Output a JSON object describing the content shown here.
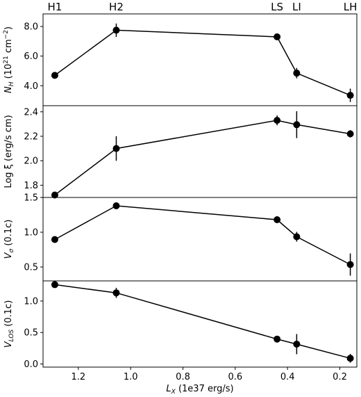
{
  "chart_data": {
    "type": "line",
    "x": [
      1.29,
      1.055,
      0.44,
      0.365,
      0.16
    ],
    "xlim": [
      1.335,
      0.135
    ],
    "xticks": [
      1.2,
      1.0,
      0.8,
      0.6,
      0.4,
      0.2
    ],
    "xtick_labels": [
      "1.2",
      "1.0",
      "0.8",
      "0.6",
      "0.4",
      "0.2"
    ],
    "xlabel_parts": [
      "L",
      "X",
      " (1e37 erg/s)"
    ],
    "top_labels": [
      "H1",
      "H2",
      "LS",
      "LI",
      "LH"
    ],
    "panels": [
      {
        "ylabel_parts": [
          "N",
          "H",
          " (10",
          "21",
          " cm",
          "−2",
          ")"
        ],
        "ylim": [
          2.65,
          8.85
        ],
        "yticks": [
          4.0,
          6.0,
          8.0
        ],
        "ytick_labels": [
          "4.0",
          "6.0",
          "8.0"
        ],
        "values": [
          4.7,
          7.75,
          7.3,
          4.85,
          3.35
        ],
        "errors": [
          0.12,
          0.45,
          0.18,
          0.35,
          0.45
        ]
      },
      {
        "ylabel_parts": [
          "Log ξ (erg/s cm)"
        ],
        "ylim": [
          1.7,
          2.45
        ],
        "yticks": [
          1.8,
          2.0,
          2.2,
          2.4
        ],
        "ytick_labels": [
          "1.8",
          "2.0",
          "2.2",
          "2.4"
        ],
        "values": [
          1.72,
          2.1,
          2.33,
          2.295,
          2.22
        ],
        "errors": [
          0.008,
          0.1,
          0.04,
          0.11,
          0.03
        ]
      },
      {
        "ylabel_parts": [
          "V",
          "σ",
          " (0.1c)"
        ],
        "ylim": [
          0.3,
          1.5
        ],
        "yticks": [
          0.5,
          1.0,
          1.5
        ],
        "ytick_labels": [
          "0.5",
          "1.0",
          "1.5"
        ],
        "values": [
          0.895,
          1.38,
          1.18,
          0.935,
          0.535
        ],
        "errors": [
          0.02,
          0.05,
          0.035,
          0.07,
          0.16
        ]
      },
      {
        "ylabel_parts": [
          "V",
          "LOS",
          " (0.1c)"
        ],
        "ylim": [
          -0.05,
          1.32
        ],
        "yticks": [
          0.0,
          0.5,
          1.0
        ],
        "ytick_labels": [
          "0.0",
          "0.5",
          "1.0"
        ],
        "values": [
          1.26,
          1.13,
          0.395,
          0.315,
          0.09
        ],
        "errors": [
          0.015,
          0.08,
          0.02,
          0.16,
          0.07
        ]
      }
    ],
    "grid": false,
    "legend": "none"
  }
}
